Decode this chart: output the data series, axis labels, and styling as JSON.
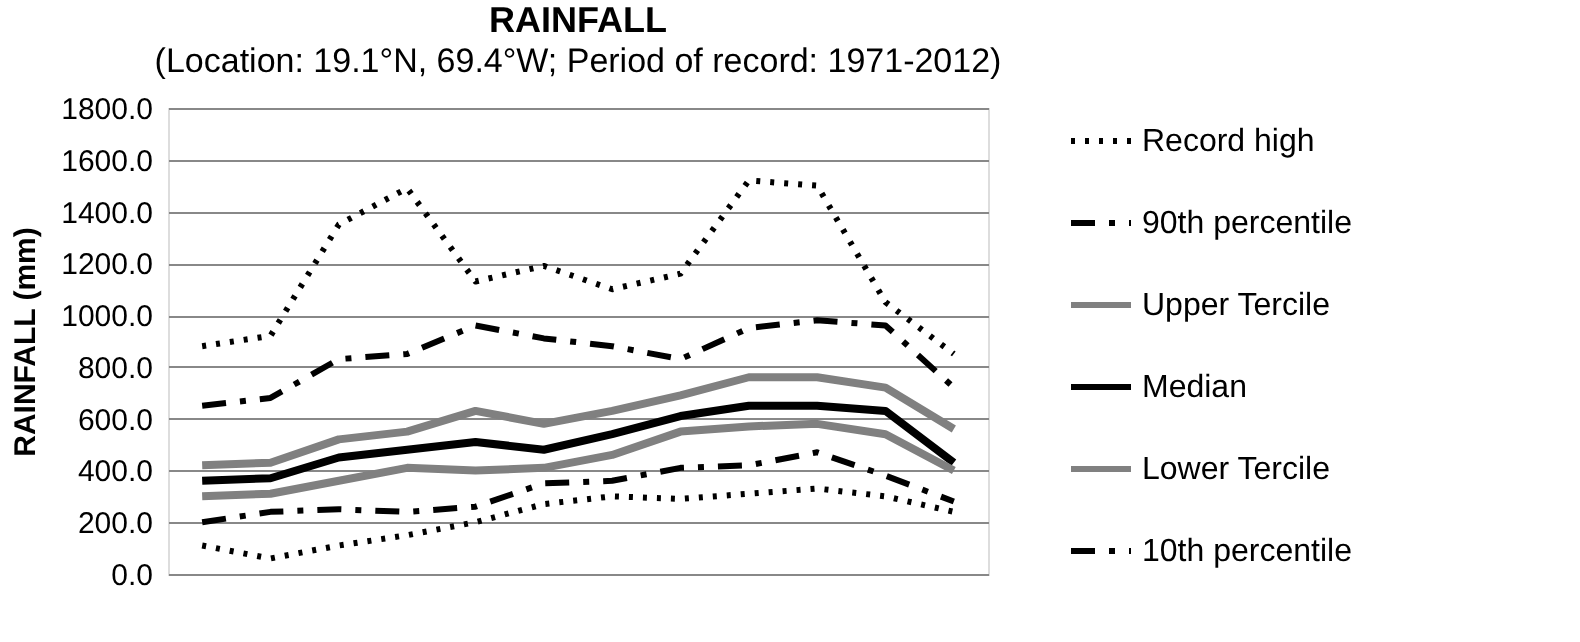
{
  "chart_data": {
    "type": "line",
    "title": "RAINFALL",
    "subtitle": "(Location: 19.1°N, 69.4°W; Period of record: 1971-2012)",
    "ylabel": "RAINFALL (mm)",
    "categories": [
      null,
      null,
      null,
      null,
      null,
      null,
      null,
      null,
      null,
      null,
      null,
      null
    ],
    "ylim": [
      0,
      1800
    ],
    "yticks": [
      {
        "value": 0,
        "label": "0.0"
      },
      {
        "value": 200,
        "label": "200.0"
      },
      {
        "value": 400,
        "label": "400.0"
      },
      {
        "value": 600,
        "label": "600.0"
      },
      {
        "value": 800,
        "label": "800.0"
      },
      {
        "value": 1000,
        "label": "1000.0"
      },
      {
        "value": 1200,
        "label": "1200.0"
      },
      {
        "value": 1400,
        "label": "1400.0"
      },
      {
        "value": 1600,
        "label": "1600.0"
      },
      {
        "value": 1800,
        "label": "1800.0"
      }
    ],
    "grid": "y",
    "legend": "right",
    "tick_labels": "y",
    "marker": "none",
    "series": [
      {
        "name": "Record high",
        "color": "#000000",
        "line_style": "dotted",
        "values": [
          880,
          920,
          1350,
          1490,
          1130,
          1190,
          1100,
          1160,
          1520,
          1500,
          1050,
          850
        ]
      },
      {
        "name": "90th percentile",
        "color": "#000000",
        "line_style": "dashed",
        "values": [
          650,
          680,
          830,
          850,
          960,
          910,
          880,
          830,
          950,
          980,
          960,
          720
        ]
      },
      {
        "name": "Upper Tercile",
        "color": "#808080",
        "line_style": "solid",
        "values": [
          420,
          430,
          520,
          550,
          630,
          580,
          630,
          690,
          760,
          760,
          720,
          560
        ]
      },
      {
        "name": "Median",
        "color": "#000000",
        "line_style": "solid",
        "values": [
          360,
          370,
          450,
          480,
          510,
          480,
          540,
          610,
          650,
          650,
          630,
          430
        ]
      },
      {
        "name": "Lower Tercile",
        "color": "#808080",
        "line_style": "solid",
        "values": [
          300,
          310,
          360,
          410,
          400,
          410,
          460,
          550,
          570,
          580,
          540,
          400
        ]
      },
      {
        "name": "10th percentile",
        "color": "#000000",
        "line_style": "dashed",
        "values": [
          200,
          240,
          250,
          240,
          260,
          350,
          360,
          410,
          420,
          470,
          380,
          280
        ]
      },
      {
        "color": "#000000",
        "line_style": "dotted",
        "values": [
          110,
          60,
          110,
          150,
          200,
          270,
          300,
          290,
          310,
          330,
          300,
          240
        ]
      }
    ]
  }
}
